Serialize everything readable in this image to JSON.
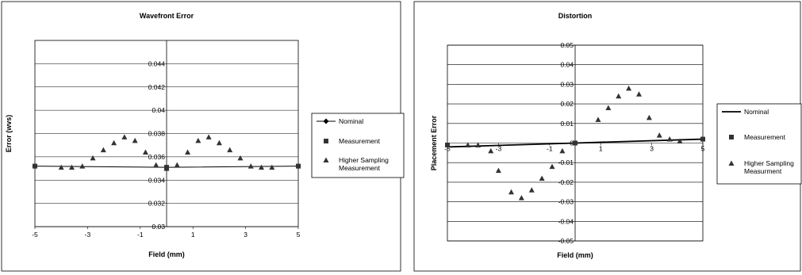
{
  "colors": {
    "nominal": "#000000",
    "markers": "#333333",
    "grid": "#000000"
  },
  "chart_data": [
    {
      "type": "scatter",
      "title": "Wavefront Error",
      "xlabel": "Field (mm)",
      "ylabel": "Error (wvs)",
      "xlim": [
        -5,
        5
      ],
      "ylim": [
        0.03,
        0.046
      ],
      "xticks": [
        "-5",
        "-3",
        "-1",
        "1",
        "3",
        "5"
      ],
      "yticks": [
        "0.03",
        "0.032",
        "0.034",
        "0.036",
        "0.038",
        "0.04",
        "0.042",
        "0.044"
      ],
      "legend_position": "right",
      "series": [
        {
          "name": "Nominal",
          "marker": "diamond",
          "line": true,
          "x": [
            -5,
            0,
            5
          ],
          "y": [
            0.0352,
            0.0351,
            0.0352
          ]
        },
        {
          "name": "Measurement",
          "marker": "square",
          "line": false,
          "x": [
            -5,
            0,
            5
          ],
          "y": [
            0.0352,
            0.0351,
            0.0352
          ]
        },
        {
          "name": "Higher Sampling Measurement",
          "marker": "triangle",
          "line": false,
          "x": [
            -4,
            -3.6,
            -3.2,
            -2.8,
            -2.4,
            -2,
            -1.6,
            -1.2,
            -0.8,
            -0.4,
            0,
            0.4,
            0.8,
            1.2,
            1.6,
            2,
            2.4,
            2.8,
            3.2,
            3.6,
            4
          ],
          "y": [
            0.0351,
            0.0351,
            0.0352,
            0.0359,
            0.0366,
            0.0372,
            0.0377,
            0.0374,
            0.0364,
            0.0353,
            0.035,
            0.0353,
            0.0364,
            0.0374,
            0.0377,
            0.0372,
            0.0366,
            0.0359,
            0.0352,
            0.0351,
            0.0351
          ]
        }
      ]
    },
    {
      "type": "scatter",
      "title": "Distortion",
      "xlabel": "Field (mm)",
      "ylabel": "Placement Error",
      "xlim": [
        -5,
        5
      ],
      "ylim": [
        -0.05,
        0.05
      ],
      "xticks": [
        "-5",
        "-3",
        "-1",
        "1",
        "3",
        "5"
      ],
      "yticks": [
        "0.05",
        "0.04",
        "0.03",
        "0.02",
        "0.01",
        "0",
        "-0.01",
        "-0.02",
        "-0.03",
        "-0.04",
        "-0.05"
      ],
      "ytick_values": [
        0.05,
        0.04,
        0.03,
        0.02,
        0.01,
        0,
        -0.01,
        -0.02,
        -0.03,
        -0.04,
        -0.05
      ],
      "legend_position": "right",
      "series": [
        {
          "name": "Nominal",
          "marker": "none",
          "line": true,
          "x": [
            -5,
            0,
            5
          ],
          "y": [
            -0.002,
            0,
            0.002
          ]
        },
        {
          "name": "Measurement",
          "marker": "square",
          "line": false,
          "x": [
            -5,
            0,
            5
          ],
          "y": [
            -0.001,
            0,
            0.002
          ]
        },
        {
          "name": "Higher Sampling Measurment",
          "marker": "triangle",
          "line": false,
          "x": [
            -4.2,
            -3.8,
            -3.3,
            -3,
            -2.5,
            -2.1,
            -1.7,
            -1.3,
            -0.9,
            -0.5,
            0.9,
            1.3,
            1.7,
            2.1,
            2.5,
            2.9,
            3.3,
            3.7,
            4.1
          ],
          "y": [
            -0.001,
            -0.001,
            -0.004,
            -0.014,
            -0.025,
            -0.028,
            -0.024,
            -0.018,
            -0.012,
            -0.004,
            0.012,
            0.018,
            0.024,
            0.028,
            0.025,
            0.013,
            0.004,
            0.002,
            0.001
          ]
        }
      ]
    }
  ]
}
